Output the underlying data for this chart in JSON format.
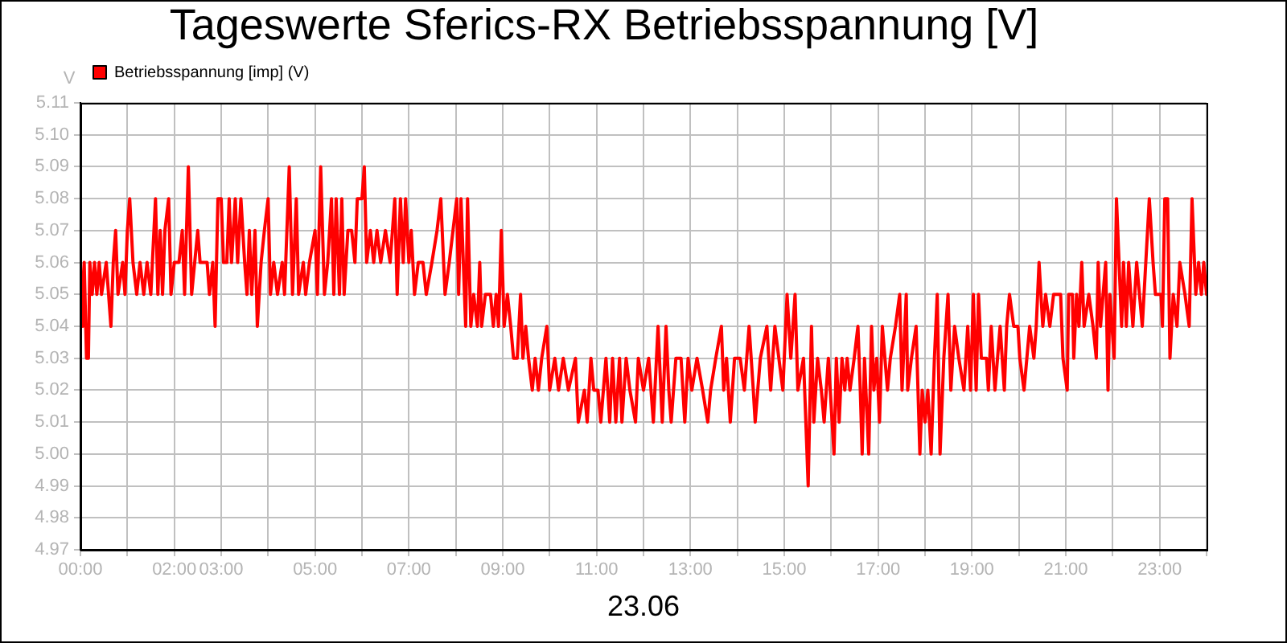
{
  "chart_data": {
    "type": "line",
    "title": "Tageswerte Sferics-RX Betriebsspannung [V]",
    "xlabel": "23.06",
    "ylabel": "V",
    "x": [
      0,
      0.05,
      0.08,
      0.13,
      0.17,
      0.2,
      0.25,
      0.3,
      0.35,
      0.4,
      0.45,
      0.55,
      0.6,
      0.65,
      0.7,
      0.75,
      0.8,
      0.9,
      0.95,
      1.0,
      1.05,
      1.12,
      1.2,
      1.27,
      1.35,
      1.42,
      1.5,
      1.6,
      1.65,
      1.7,
      1.75,
      1.8,
      1.88,
      1.93,
      2.0,
      2.1,
      2.17,
      2.22,
      2.3,
      2.37,
      2.5,
      2.55,
      2.7,
      2.75,
      2.82,
      2.87,
      2.93,
      3.0,
      3.05,
      3.12,
      3.17,
      3.22,
      3.3,
      3.35,
      3.42,
      3.5,
      3.55,
      3.6,
      3.65,
      3.72,
      3.77,
      3.85,
      3.92,
      4.0,
      4.05,
      4.12,
      4.2,
      4.3,
      4.35,
      4.45,
      4.52,
      4.6,
      4.65,
      4.75,
      4.8,
      4.88,
      5.0,
      5.05,
      5.12,
      5.2,
      5.27,
      5.35,
      5.4,
      5.45,
      5.52,
      5.57,
      5.62,
      5.7,
      5.78,
      5.85,
      5.9,
      6.0,
      6.05,
      6.1,
      6.18,
      6.25,
      6.32,
      6.4,
      6.5,
      6.6,
      6.7,
      6.75,
      6.82,
      6.88,
      6.93,
      7.0,
      7.05,
      7.12,
      7.2,
      7.3,
      7.37,
      7.49,
      7.6,
      7.68,
      7.77,
      7.86,
      7.94,
      8.02,
      8.06,
      8.11,
      8.21,
      8.25,
      8.32,
      8.38,
      8.46,
      8.51,
      8.55,
      8.63,
      8.74,
      8.8,
      8.86,
      8.91,
      8.97,
      9.03,
      9.1,
      9.17,
      9.23,
      9.31,
      9.38,
      9.43,
      9.49,
      9.55,
      9.63,
      9.69,
      9.76,
      9.83,
      9.94,
      10.0,
      10.11,
      10.19,
      10.29,
      10.4,
      10.55,
      10.61,
      10.74,
      10.8,
      10.88,
      10.94,
      11.03,
      11.09,
      11.2,
      11.28,
      11.34,
      11.41,
      11.49,
      11.54,
      11.63,
      11.71,
      11.83,
      11.89,
      12.0,
      12.11,
      12.21,
      12.31,
      12.4,
      12.48,
      12.54,
      12.59,
      12.69,
      12.8,
      12.88,
      12.95,
      13.03,
      13.14,
      13.26,
      13.37,
      13.43,
      13.54,
      13.66,
      13.71,
      13.77,
      13.85,
      13.94,
      14.06,
      14.15,
      14.25,
      14.34,
      14.38,
      14.49,
      14.63,
      14.71,
      14.8,
      14.97,
      15.06,
      15.14,
      15.23,
      15.29,
      15.41,
      15.51,
      15.58,
      15.63,
      15.71,
      15.79,
      15.85,
      15.94,
      16.06,
      16.11,
      16.17,
      16.23,
      16.29,
      16.34,
      16.4,
      16.49,
      16.57,
      16.62,
      16.66,
      16.71,
      16.8,
      16.86,
      16.91,
      16.97,
      17.03,
      17.09,
      17.2,
      17.26,
      17.37,
      17.46,
      17.51,
      17.6,
      17.63,
      17.71,
      17.81,
      17.89,
      17.94,
      18.0,
      18.06,
      18.13,
      18.2,
      18.26,
      18.32,
      18.4,
      18.49,
      18.55,
      18.63,
      18.72,
      18.83,
      18.91,
      18.97,
      19.03,
      19.09,
      19.14,
      19.2,
      19.31,
      19.35,
      19.41,
      19.49,
      19.6,
      19.69,
      19.74,
      19.8,
      19.89,
      19.98,
      20.02,
      20.11,
      20.17,
      20.23,
      20.32,
      20.37,
      20.43,
      20.51,
      20.57,
      20.66,
      20.74,
      20.89,
      20.94,
      21.03,
      21.06,
      21.14,
      21.17,
      21.23,
      21.28,
      21.34,
      21.39,
      21.49,
      21.58,
      21.65,
      21.69,
      21.74,
      21.85,
      21.9,
      21.94,
      22.03,
      22.08,
      22.19,
      22.23,
      22.29,
      22.34,
      22.43,
      22.51,
      22.63,
      22.78,
      22.86,
      22.91,
      23.03,
      23.06,
      23.11,
      23.17,
      23.22,
      23.29,
      23.37,
      23.43,
      23.54,
      23.63,
      23.69,
      23.77,
      23.83,
      23.89,
      23.94,
      24.0
    ],
    "series": [
      {
        "name": "Betriebsspannung [imp] (V)",
        "color": "#ff0000",
        "values": [
          5.06,
          5.04,
          5.06,
          5.03,
          5.03,
          5.06,
          5.05,
          5.06,
          5.05,
          5.06,
          5.05,
          5.06,
          5.05,
          5.04,
          5.06,
          5.07,
          5.05,
          5.06,
          5.05,
          5.07,
          5.08,
          5.06,
          5.05,
          5.06,
          5.05,
          5.06,
          5.05,
          5.08,
          5.05,
          5.07,
          5.05,
          5.07,
          5.08,
          5.05,
          5.06,
          5.06,
          5.07,
          5.05,
          5.09,
          5.05,
          5.07,
          5.06,
          5.06,
          5.05,
          5.06,
          5.04,
          5.08,
          5.08,
          5.06,
          5.06,
          5.08,
          5.06,
          5.08,
          5.06,
          5.08,
          5.06,
          5.05,
          5.07,
          5.05,
          5.07,
          5.04,
          5.06,
          5.07,
          5.08,
          5.05,
          5.06,
          5.05,
          5.06,
          5.05,
          5.09,
          5.05,
          5.08,
          5.05,
          5.06,
          5.05,
          5.06,
          5.07,
          5.05,
          5.09,
          5.05,
          5.06,
          5.08,
          5.05,
          5.08,
          5.05,
          5.08,
          5.05,
          5.07,
          5.07,
          5.06,
          5.08,
          5.08,
          5.09,
          5.06,
          5.07,
          5.06,
          5.07,
          5.06,
          5.07,
          5.06,
          5.08,
          5.05,
          5.08,
          5.06,
          5.08,
          5.06,
          5.07,
          5.05,
          5.06,
          5.06,
          5.05,
          5.06,
          5.07,
          5.08,
          5.05,
          5.06,
          5.07,
          5.08,
          5.05,
          5.08,
          5.04,
          5.08,
          5.04,
          5.05,
          5.04,
          5.06,
          5.04,
          5.05,
          5.05,
          5.04,
          5.05,
          5.04,
          5.07,
          5.04,
          5.05,
          5.04,
          5.03,
          5.03,
          5.05,
          5.03,
          5.04,
          5.03,
          5.02,
          5.03,
          5.02,
          5.03,
          5.04,
          5.02,
          5.03,
          5.02,
          5.03,
          5.02,
          5.03,
          5.01,
          5.02,
          5.01,
          5.03,
          5.02,
          5.02,
          5.01,
          5.03,
          5.01,
          5.03,
          5.01,
          5.03,
          5.01,
          5.03,
          5.02,
          5.01,
          5.03,
          5.02,
          5.03,
          5.01,
          5.04,
          5.01,
          5.04,
          5.02,
          5.01,
          5.03,
          5.03,
          5.01,
          5.03,
          5.02,
          5.03,
          5.02,
          5.01,
          5.02,
          5.03,
          5.04,
          5.02,
          5.03,
          5.01,
          5.03,
          5.03,
          5.02,
          5.04,
          5.02,
          5.01,
          5.03,
          5.04,
          5.02,
          5.04,
          5.02,
          5.05,
          5.03,
          5.05,
          5.02,
          5.03,
          4.99,
          5.04,
          5.01,
          5.03,
          5.02,
          5.01,
          5.03,
          5,
          5.03,
          5.01,
          5.03,
          5.02,
          5.03,
          5.02,
          5.03,
          5.04,
          5.02,
          5,
          5.03,
          5,
          5.04,
          5.02,
          5.03,
          5.01,
          5.04,
          5.02,
          5.03,
          5.04,
          5.05,
          5.02,
          5.05,
          5.02,
          5.03,
          5.04,
          5,
          5.02,
          5.01,
          5.02,
          5,
          5.03,
          5.05,
          5,
          5.03,
          5.05,
          5.02,
          5.04,
          5.03,
          5.02,
          5.04,
          5.02,
          5.05,
          5.02,
          5.05,
          5.03,
          5.03,
          5.02,
          5.04,
          5.02,
          5.04,
          5.02,
          5.04,
          5.05,
          5.04,
          5.04,
          5.03,
          5.02,
          5.03,
          5.04,
          5.03,
          5.04,
          5.06,
          5.04,
          5.05,
          5.04,
          5.05,
          5.05,
          5.03,
          5.02,
          5.05,
          5.05,
          5.03,
          5.05,
          5.04,
          5.06,
          5.04,
          5.05,
          5.04,
          5.03,
          5.06,
          5.04,
          5.06,
          5.02,
          5.05,
          5.03,
          5.08,
          5.04,
          5.06,
          5.04,
          5.06,
          5.04,
          5.06,
          5.04,
          5.08,
          5.06,
          5.05,
          5.05,
          5.04,
          5.08,
          5.08,
          5.03,
          5.05,
          5.04,
          5.06,
          5.05,
          5.04,
          5.08,
          5.05,
          5.06,
          5.05,
          5.06,
          5.05
        ]
      }
    ],
    "xlim": [
      0,
      24
    ],
    "xticks": [
      {
        "value": 0,
        "label": "00:00"
      },
      {
        "value": 1,
        "label": null
      },
      {
        "value": 2,
        "label": "02:00"
      },
      {
        "value": 3,
        "label": "03:00"
      },
      {
        "value": 4,
        "label": null
      },
      {
        "value": 5,
        "label": "05:00"
      },
      {
        "value": 6,
        "label": null
      },
      {
        "value": 7,
        "label": "07:00"
      },
      {
        "value": 8,
        "label": null
      },
      {
        "value": 9,
        "label": "09:00"
      },
      {
        "value": 10,
        "label": null
      },
      {
        "value": 11,
        "label": "11:00"
      },
      {
        "value": 12,
        "label": null
      },
      {
        "value": 13,
        "label": "13:00"
      },
      {
        "value": 14,
        "label": null
      },
      {
        "value": 15,
        "label": "15:00"
      },
      {
        "value": 16,
        "label": null
      },
      {
        "value": 17,
        "label": "17:00"
      },
      {
        "value": 18,
        "label": null
      },
      {
        "value": 19,
        "label": "19:00"
      },
      {
        "value": 20,
        "label": null
      },
      {
        "value": 21,
        "label": "21:00"
      },
      {
        "value": 22,
        "label": null
      },
      {
        "value": 23,
        "label": "23:00"
      },
      {
        "value": 24,
        "label": null
      }
    ],
    "ylim": [
      4.97,
      5.11
    ],
    "yticks": [
      4.97,
      4.98,
      4.99,
      {
        "value": 5,
        "label": "5.00"
      },
      5.01,
      5.02,
      5.03,
      5.04,
      5.05,
      5.06,
      5.07,
      5.08,
      5.09,
      {
        "value": 5.1,
        "label": "5.10"
      },
      5.11
    ],
    "grid": true,
    "legend": "top left",
    "marker": "none",
    "line_style": "solid"
  }
}
